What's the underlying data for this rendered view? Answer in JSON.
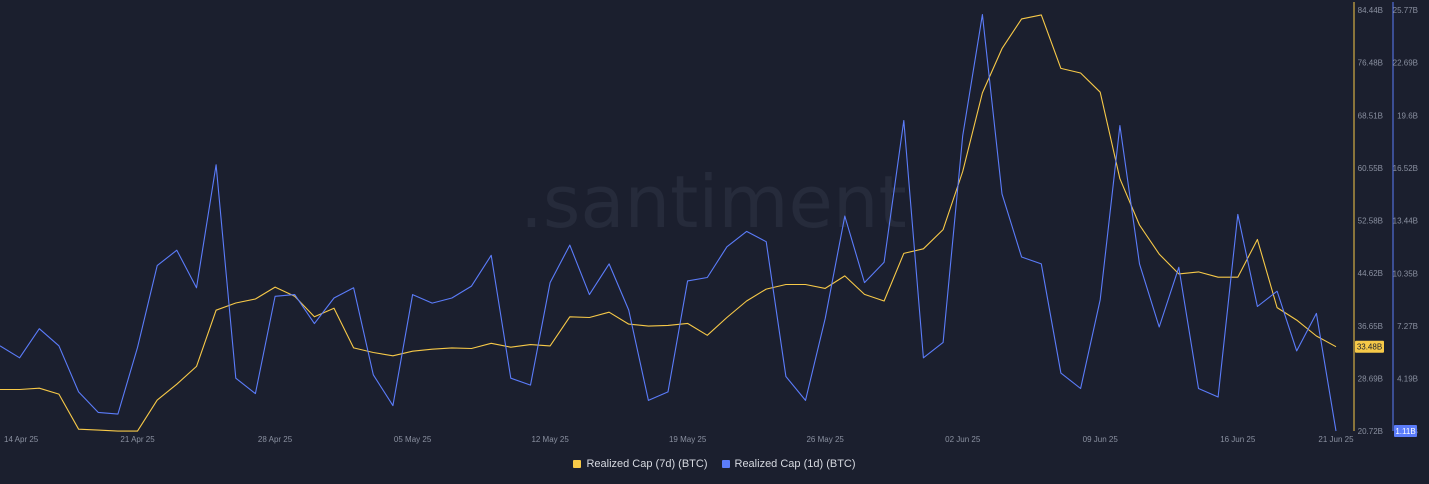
{
  "watermark": ".santiment",
  "chart_data": {
    "type": "line",
    "title": "",
    "x": [
      "14 Apr 25",
      "15 Apr 25",
      "16 Apr 25",
      "17 Apr 25",
      "18 Apr 25",
      "19 Apr 25",
      "20 Apr 25",
      "21 Apr 25",
      "22 Apr 25",
      "23 Apr 25",
      "24 Apr 25",
      "25 Apr 25",
      "26 Apr 25",
      "27 Apr 25",
      "28 Apr 25",
      "29 Apr 25",
      "30 Apr 25",
      "01 May 25",
      "02 May 25",
      "03 May 25",
      "04 May 25",
      "05 May 25",
      "06 May 25",
      "07 May 25",
      "08 May 25",
      "09 May 25",
      "10 May 25",
      "11 May 25",
      "12 May 25",
      "13 May 25",
      "14 May 25",
      "15 May 25",
      "16 May 25",
      "17 May 25",
      "18 May 25",
      "19 May 25",
      "20 May 25",
      "21 May 25",
      "22 May 25",
      "23 May 25",
      "24 May 25",
      "25 May 25",
      "26 May 25",
      "27 May 25",
      "28 May 25",
      "29 May 25",
      "30 May 25",
      "31 May 25",
      "01 Jun 25",
      "02 Jun 25",
      "03 Jun 25",
      "04 Jun 25",
      "05 Jun 25",
      "06 Jun 25",
      "07 Jun 25",
      "08 Jun 25",
      "09 Jun 25",
      "10 Jun 25",
      "11 Jun 25",
      "12 Jun 25",
      "13 Jun 25",
      "14 Jun 25",
      "15 Jun 25",
      "16 Jun 25",
      "17 Jun 25",
      "18 Jun 25",
      "19 Jun 25",
      "20 Jun 25",
      "21 Jun 25"
    ],
    "x_tick_labels": [
      "14 Apr 25",
      "21 Apr 25",
      "28 Apr 25",
      "05 May 25",
      "12 May 25",
      "19 May 25",
      "26 May 25",
      "02 Jun 25",
      "09 Jun 25",
      "16 Jun 25",
      "21 Jun 25"
    ],
    "x_tick_indices": [
      0,
      7,
      14,
      21,
      28,
      35,
      42,
      49,
      56,
      63,
      68
    ],
    "y_left": {
      "range": [
        20.72,
        84.44
      ],
      "tick_values": [
        20.72,
        28.69,
        36.65,
        44.62,
        52.58,
        60.55,
        68.51,
        76.48,
        84.44
      ],
      "tick_labels": [
        "20.72B",
        "28.69B",
        "36.65B",
        "44.62B",
        "52.58B",
        "60.55B",
        "68.51B",
        "76.48B",
        "84.44B"
      ],
      "color": "#f7c948"
    },
    "y_right": {
      "range": [
        1.11,
        25.77
      ],
      "tick_values": [
        1.11,
        4.19,
        7.27,
        10.35,
        13.44,
        16.52,
        19.6,
        22.69,
        25.77
      ],
      "tick_labels": [
        "1.11B",
        "4.19B",
        "7.27B",
        "10.35B",
        "13.44B",
        "16.52B",
        "19.6B",
        "22.69B",
        "25.77B"
      ],
      "color": "#5b7cfa"
    },
    "series": [
      {
        "name": "Realized Cap (7d) (BTC)",
        "axis": "left",
        "color": "#f7c948",
        "current_value_label": "33.48B",
        "values": [
          27.0,
          27.0,
          27.2,
          26.3,
          21.0,
          20.85,
          20.7,
          20.7,
          25.4,
          27.8,
          30.5,
          39.0,
          40.1,
          40.7,
          42.5,
          41.1,
          38.0,
          39.3,
          33.3,
          32.6,
          32.1,
          32.8,
          33.1,
          33.3,
          33.2,
          34.0,
          33.4,
          33.8,
          33.6,
          38.0,
          37.9,
          38.7,
          36.9,
          36.6,
          36.7,
          37.0,
          35.2,
          37.9,
          40.4,
          42.2,
          42.9,
          42.9,
          42.3,
          44.2,
          41.4,
          40.4,
          47.6,
          48.3,
          51.2,
          60.0,
          71.9,
          78.6,
          83.1,
          83.7,
          75.6,
          74.9,
          72.0,
          58.9,
          51.9,
          47.5,
          44.5,
          44.8,
          44.0,
          44.0,
          49.7,
          39.4,
          37.5,
          35.1,
          33.48
        ]
      },
      {
        "name": "Realized Cap (1d) (BTC)",
        "axis": "right",
        "color": "#5b7cfa",
        "current_value_label": "1.11B",
        "values": [
          6.1,
          5.4,
          7.1,
          6.1,
          3.4,
          2.2,
          2.1,
          6.0,
          10.8,
          11.7,
          9.5,
          16.7,
          4.2,
          3.3,
          9.0,
          9.1,
          7.4,
          8.9,
          9.5,
          4.4,
          2.6,
          9.1,
          8.6,
          8.9,
          9.6,
          11.4,
          4.2,
          3.8,
          9.8,
          12.0,
          9.1,
          10.9,
          8.2,
          2.9,
          3.4,
          9.9,
          10.1,
          11.9,
          12.8,
          12.2,
          4.3,
          2.9,
          7.7,
          13.7,
          9.8,
          11.0,
          19.3,
          5.4,
          6.3,
          18.4,
          25.5,
          15.0,
          11.3,
          10.9,
          4.5,
          3.6,
          8.8,
          19.0,
          10.9,
          7.2,
          10.7,
          3.6,
          3.1,
          13.8,
          8.4,
          9.3,
          5.8,
          8.0,
          1.11
        ]
      }
    ],
    "grid": false,
    "legend": "bottom-center"
  }
}
